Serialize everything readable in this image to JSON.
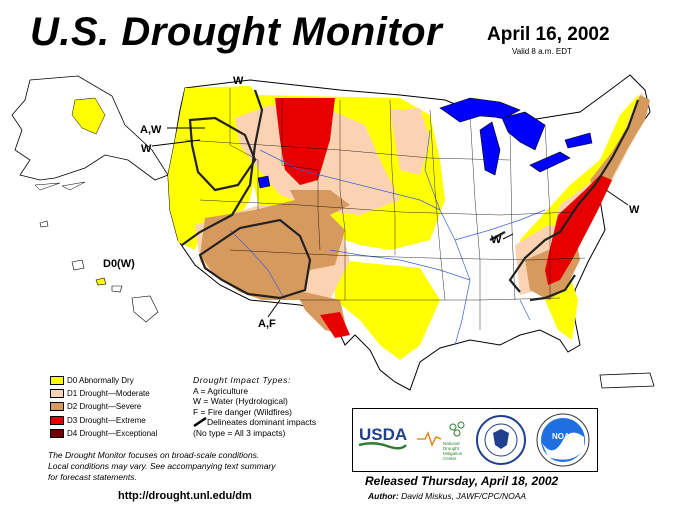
{
  "header": {
    "title": "U.S. Drought Monitor",
    "date": "April 16, 2002",
    "valid": "Valid 8 a.m. EDT"
  },
  "map_labels": {
    "w_north": "W",
    "aw": "A,W",
    "w_west": "W",
    "hawaii": "D0(W)",
    "af": "A,F",
    "w_midwest": "W",
    "w_east": "W"
  },
  "legend": {
    "items": [
      {
        "label": "D0 Abnormally Dry",
        "color": "#ffff00"
      },
      {
        "label": "D1 Drought—Moderate",
        "color": "#fcd3b2"
      },
      {
        "label": "D2 Drought—Severe",
        "color": "#d79a5e"
      },
      {
        "label": "D3 Drought—Extreme",
        "color": "#e60000"
      },
      {
        "label": "D4 Drought—Exceptional",
        "color": "#730000"
      }
    ]
  },
  "impacts": {
    "heading": "Drought Impact Types:",
    "a": "A = Agriculture",
    "w": "W = Water (Hydrological)",
    "f": "F = Fire danger (Wildfires)",
    "line": "Delineates dominant impacts",
    "none": "(No type = All 3 impacts)"
  },
  "note": {
    "line1": "The Drought Monitor focuses on broad-scale conditions.",
    "line2": "Local conditions may vary. See accompanying text summary",
    "line3": "for forecast statements."
  },
  "footer": {
    "url": "http://drought.unl.edu/dm",
    "released": "Released Thursday, April 18, 2002",
    "author_label": "Author:",
    "author_name": "David Miskus, JAWF/CPC/NOAA"
  },
  "logos": {
    "usda": "USDA",
    "ndmc": "National Drought Mitigation Center",
    "noaa": "NOAA"
  },
  "colors": {
    "lakes": "#0000ff",
    "rivers": "#4060d8",
    "land": "#ffffff"
  }
}
